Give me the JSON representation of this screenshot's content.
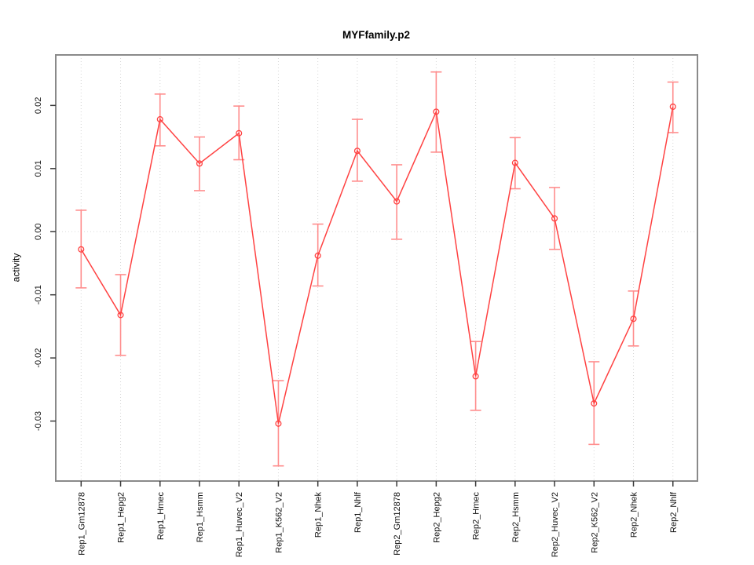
{
  "chart_data": {
    "type": "line",
    "title": "MYFfamily.p2",
    "ylabel": "activity",
    "xlabel": "",
    "legend": "none",
    "grid": "vertical dotted gridline at each category; dotted horizontal line at y=0",
    "categories": [
      "Rep1_Gm12878",
      "Rep1_Hepg2",
      "Rep1_Hmec",
      "Rep1_Hsmm",
      "Rep1_Huvec_V2",
      "Rep1_K562_V2",
      "Rep1_Nhek",
      "Rep1_Nhlf",
      "Rep2_Gm12878",
      "Rep2_Hepg2",
      "Rep2_Hmec",
      "Rep2_Hsmm",
      "Rep2_Huvec_V2",
      "Rep2_K562_V2",
      "Rep2_Nhek",
      "Rep2_Nhlf"
    ],
    "series": [
      {
        "name": "activity",
        "values": [
          -0.0028,
          -0.0132,
          0.0178,
          0.0108,
          0.0156,
          -0.0304,
          -0.0038,
          0.0128,
          0.0048,
          0.019,
          -0.0229,
          0.0109,
          0.0021,
          -0.0272,
          -0.0138,
          0.0198
        ]
      }
    ],
    "error_bars": {
      "lower": [
        -0.0089,
        -0.0196,
        0.0136,
        0.0065,
        0.0114,
        -0.0371,
        -0.0086,
        0.008,
        -0.0012,
        0.0126,
        -0.0283,
        0.0068,
        -0.0028,
        -0.0337,
        -0.0181,
        0.0157
      ],
      "upper": [
        0.0034,
        -0.0068,
        0.0218,
        0.015,
        0.0199,
        -0.0236,
        0.0012,
        0.0178,
        0.0106,
        0.0253,
        -0.0174,
        0.0149,
        0.007,
        -0.0206,
        -0.0094,
        0.0237
      ]
    },
    "ylim": [
      -0.0395,
      0.028
    ],
    "yticks": [
      -0.03,
      -0.02,
      -0.01,
      0.0,
      0.01,
      0.02
    ],
    "ytick_labels": [
      "-0.03",
      "-0.02",
      "-0.01",
      "0.00",
      "0.01",
      "0.02"
    ],
    "colors": {
      "line": "#ff4242",
      "point": "#ff4242",
      "error_bar": "#ff8d8d",
      "grid": "#d6d6d6",
      "zero_line": "#dadada",
      "box": "#8a8a8a",
      "tick": "#3a3a3a",
      "text": "#000000"
    }
  }
}
